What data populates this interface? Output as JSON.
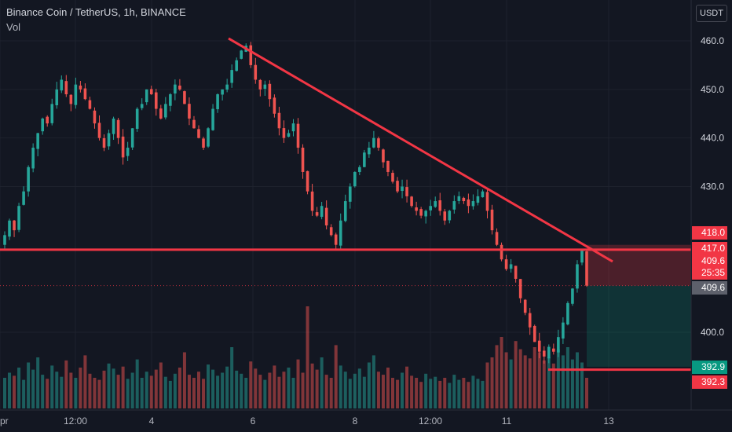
{
  "header": {
    "title": "Binance Coin / TetherUS, 1h, BINANCE",
    "volume_label": "Vol"
  },
  "currency_button": "USDT",
  "chart_data": {
    "type": "candlestick",
    "y_ticks": [
      "460.0",
      "450.0",
      "440.0",
      "430.0",
      "400.0"
    ],
    "x_ticks": [
      "pr",
      "12:00",
      "4",
      "6",
      "8",
      "12:00",
      "11",
      "13"
    ],
    "ylim": [
      387.0,
      465.0
    ],
    "price_badges": [
      {
        "label": "418.0",
        "value": 418.0,
        "color": "#f23645"
      },
      {
        "label": "417.0",
        "value": 417.0,
        "color": "#f23645"
      },
      {
        "label": "409.6",
        "value": 409.6,
        "color": "#f23645"
      },
      {
        "label": "25:35",
        "value": 407.6,
        "color": "#f23645"
      },
      {
        "label": "409.6",
        "value": 409.6,
        "color": "#5d606b"
      },
      {
        "label": "392.9",
        "value": 392.9,
        "color": "#089981"
      },
      {
        "label": "392.3",
        "value": 392.3,
        "color": "#f23645"
      }
    ],
    "horizontal_line_levels": [
      417.0,
      392.3
    ],
    "trendline": {
      "start": {
        "x": "5 12:00",
        "y": 460.5
      },
      "end": {
        "x": "12 12:00",
        "y": 415.0
      }
    },
    "position_levels": {
      "entry": 409.6,
      "stop": 418.0,
      "target": 392.9
    },
    "series": {
      "close": [
        420,
        423,
        421,
        426,
        429,
        434,
        438,
        441,
        444,
        443,
        447,
        450,
        452,
        449,
        447,
        451,
        450,
        448,
        446,
        443,
        440,
        438,
        441,
        444,
        440,
        436,
        438,
        442,
        446,
        447,
        450,
        449,
        446,
        444,
        447,
        449,
        451,
        450,
        447,
        444,
        442,
        440,
        438,
        442,
        446,
        449,
        450,
        451,
        454,
        456,
        458,
        459,
        455,
        452,
        450,
        451,
        448,
        445,
        442,
        440,
        441,
        443,
        438,
        433,
        429,
        425,
        424,
        426,
        422,
        420,
        418,
        423,
        427,
        430,
        433,
        434,
        437,
        438,
        440,
        438,
        435,
        433,
        431,
        429,
        430,
        428,
        426,
        425,
        424,
        425,
        426,
        427,
        425,
        423,
        425,
        427,
        428,
        427,
        426,
        427,
        428,
        429,
        425,
        421,
        418,
        415,
        413,
        414,
        411,
        407,
        404,
        401,
        398,
        396,
        395,
        397,
        396,
        399,
        402,
        406,
        409,
        414,
        417,
        409.6
      ],
      "volume": [
        0.3,
        0.35,
        0.32,
        0.4,
        0.28,
        0.45,
        0.38,
        0.5,
        0.33,
        0.29,
        0.42,
        0.36,
        0.31,
        0.47,
        0.35,
        0.3,
        0.4,
        0.52,
        0.34,
        0.3,
        0.28,
        0.37,
        0.44,
        0.39,
        0.33,
        0.41,
        0.29,
        0.35,
        0.48,
        0.3,
        0.36,
        0.32,
        0.38,
        0.45,
        0.31,
        0.27,
        0.34,
        0.4,
        0.55,
        0.33,
        0.3,
        0.36,
        0.29,
        0.43,
        0.38,
        0.32,
        0.35,
        0.41,
        0.6,
        0.37,
        0.34,
        0.3,
        0.46,
        0.39,
        0.33,
        0.28,
        0.35,
        0.42,
        0.31,
        0.36,
        0.4,
        0.3,
        0.48,
        0.35,
        1.0,
        0.44,
        0.38,
        0.5,
        0.33,
        0.3,
        0.62,
        0.42,
        0.36,
        0.29,
        0.34,
        0.39,
        0.31,
        0.45,
        0.52,
        0.36,
        0.33,
        0.4,
        0.3,
        0.28,
        0.35,
        0.41,
        0.32,
        0.3,
        0.26,
        0.34,
        0.29,
        0.31,
        0.27,
        0.3,
        0.25,
        0.33,
        0.28,
        0.3,
        0.26,
        0.32,
        0.29,
        0.27,
        0.45,
        0.5,
        0.62,
        0.7,
        0.55,
        0.48,
        0.66,
        0.58,
        0.52,
        0.49,
        0.6,
        0.55,
        0.47,
        0.5,
        0.44,
        0.58,
        0.52,
        0.6,
        0.48,
        0.55,
        0.45,
        0.3
      ]
    }
  },
  "colors": {
    "up": "#26a69a",
    "down": "#ef5350",
    "line": "#f23645",
    "background": "#131722",
    "grid": "#1e222d"
  }
}
